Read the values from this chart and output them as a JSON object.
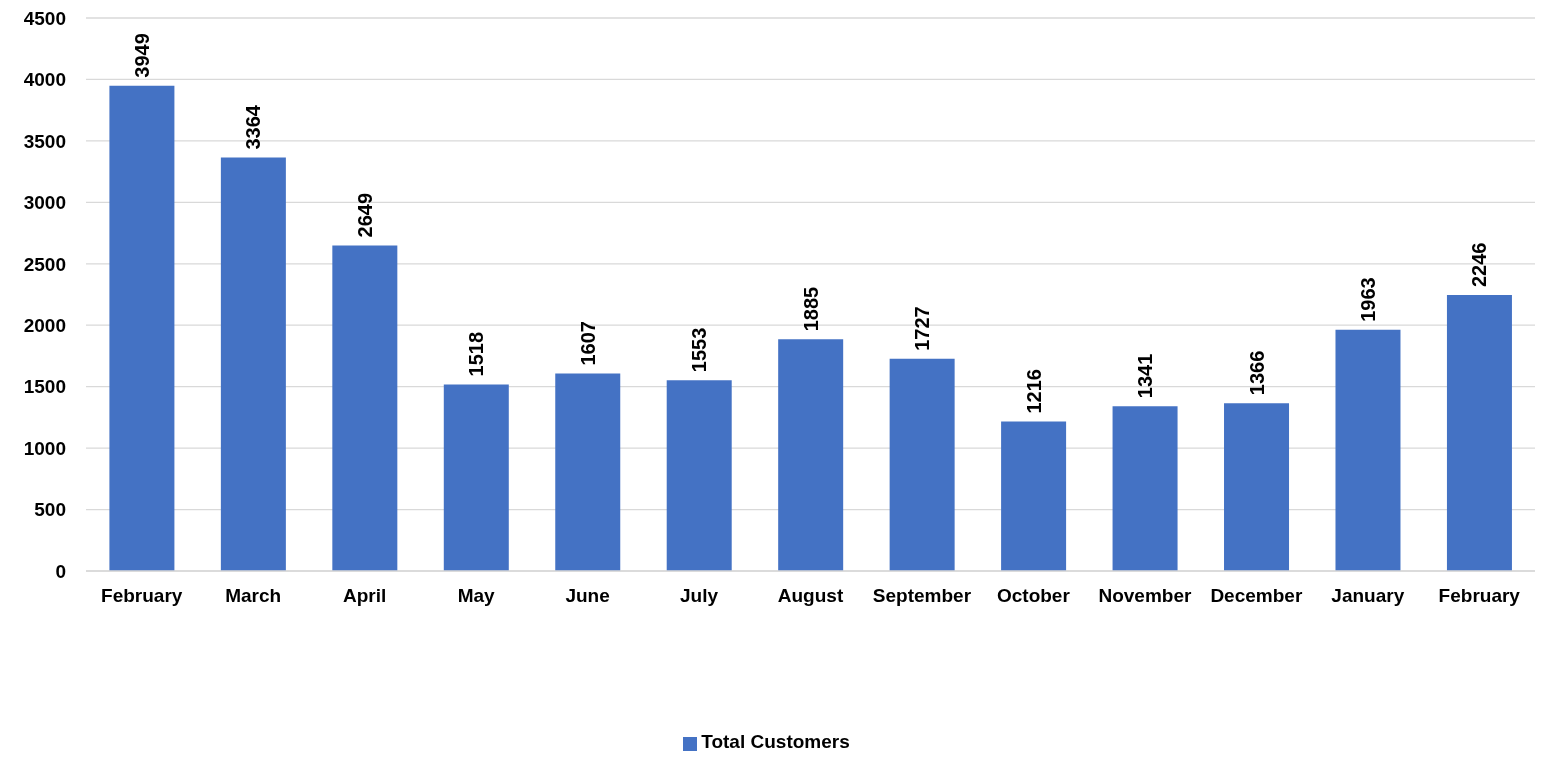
{
  "chart_data": {
    "type": "bar",
    "categories": [
      "February",
      "March",
      "April",
      "May",
      "June",
      "July",
      "August",
      "September",
      "October",
      "November",
      "December",
      "January",
      "February"
    ],
    "series": [
      {
        "name": "Total Customers",
        "color": "#4472c4",
        "values": [
          3949,
          3364,
          2649,
          1518,
          1607,
          1553,
          1885,
          1727,
          1216,
          1341,
          1366,
          1963,
          2246
        ]
      }
    ],
    "ylim": [
      0,
      4500
    ],
    "yticks": [
      0,
      500,
      1000,
      1500,
      2000,
      2500,
      3000,
      3500,
      4000,
      4500
    ],
    "grid": "y",
    "legend": "bottom",
    "data_labels": true
  }
}
